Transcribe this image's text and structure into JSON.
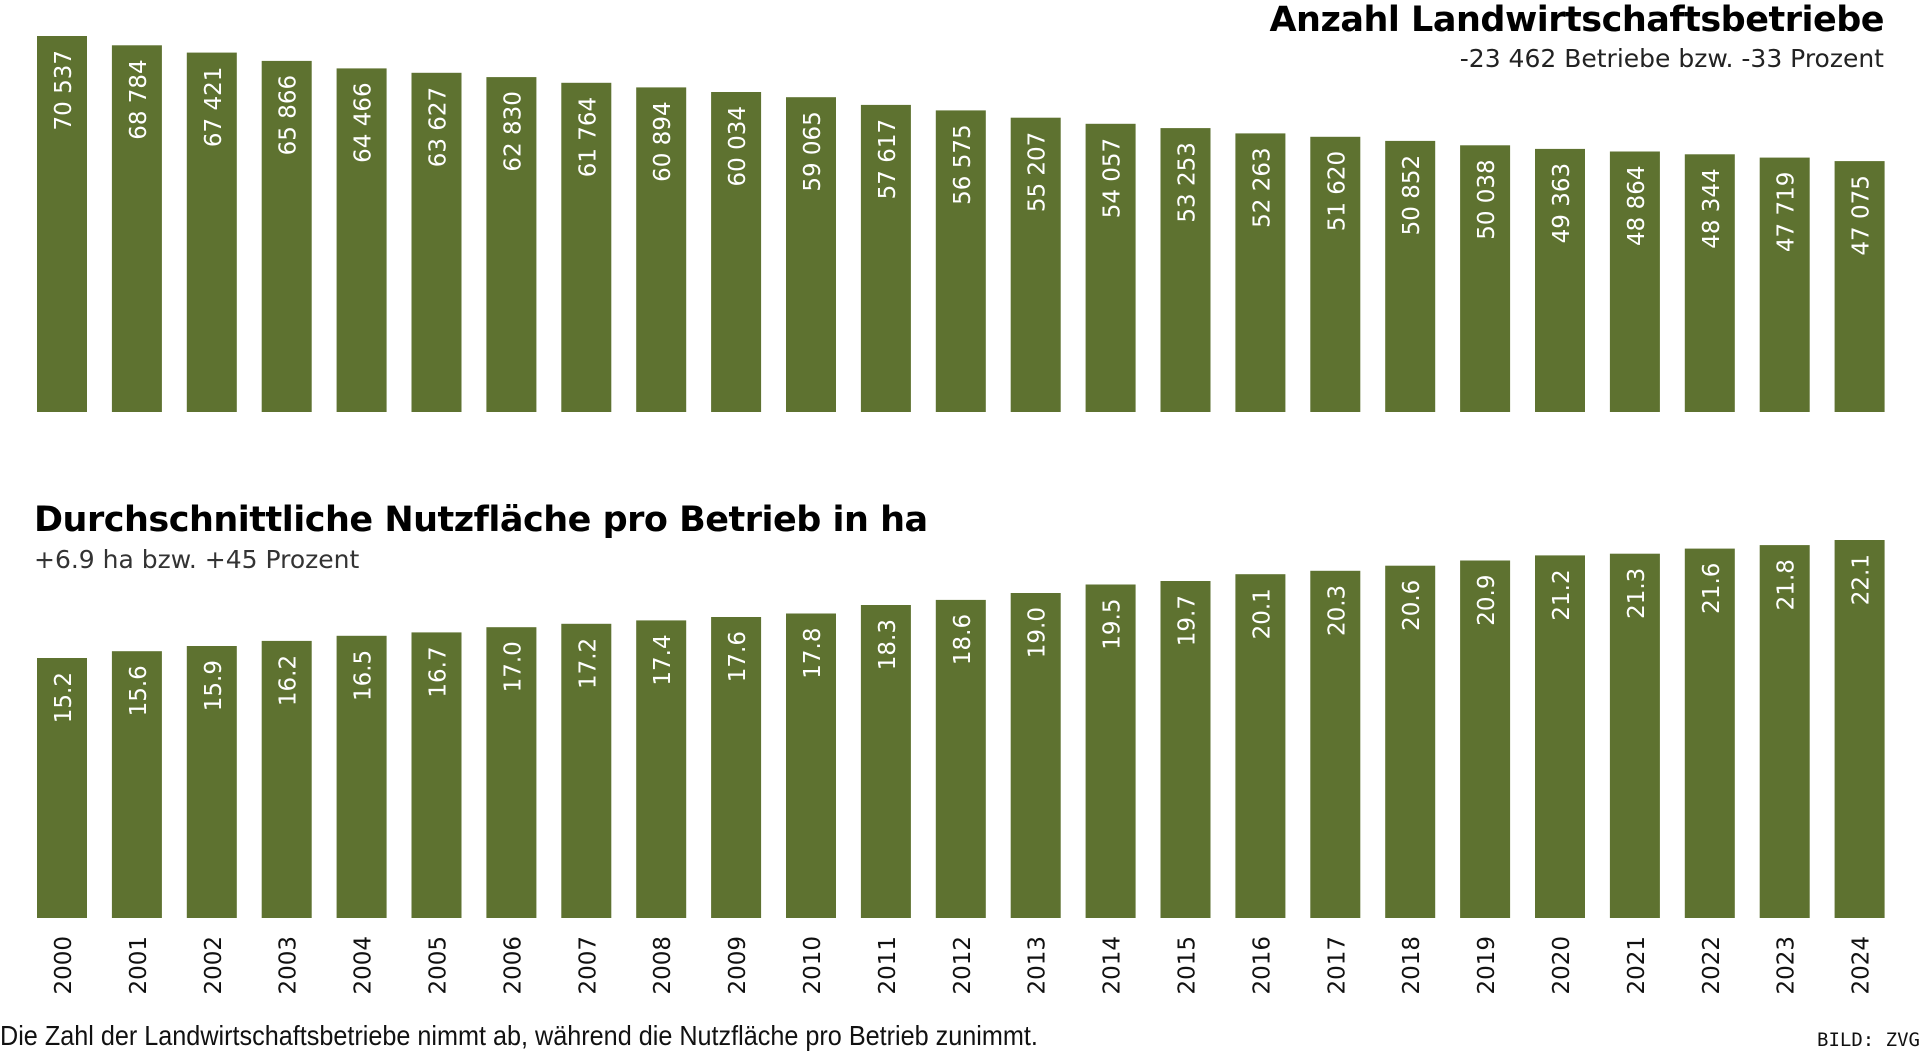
{
  "colors": {
    "bar": "#5e7230",
    "bar_label": "#ffffff",
    "text": "#000000"
  },
  "top": {
    "title": "Anzahl Landwirtschaftsbetriebe",
    "subtitle": "-23 462 Betriebe bzw. -33 Prozent"
  },
  "bottom": {
    "title": "Durchschnittliche Nutzfläche pro Betrieb in ha",
    "subtitle": "+6.9 ha bzw. +45 Prozent"
  },
  "footer": {
    "caption": "Die Zahl der Landwirtschaftsbetriebe nimmt ab, während die Nutzfläche pro Betrieb zunimmt.",
    "credit": "BILD: ZVG"
  },
  "chart_data": [
    {
      "type": "bar",
      "title": "Anzahl Landwirtschaftsbetriebe",
      "subtitle": "-23 462 Betriebe bzw. -33 Prozent",
      "categories": [
        "2000",
        "2001",
        "2002",
        "2003",
        "2004",
        "2005",
        "2006",
        "2007",
        "2008",
        "2009",
        "2010",
        "2011",
        "2012",
        "2013",
        "2014",
        "2015",
        "2016",
        "2017",
        "2018",
        "2019",
        "2020",
        "2021",
        "2022",
        "2023",
        "2024"
      ],
      "values": [
        70537,
        68784,
        67421,
        65866,
        64466,
        63627,
        62830,
        61764,
        60894,
        60034,
        59065,
        57617,
        56575,
        55207,
        54057,
        53253,
        52263,
        51620,
        50852,
        50038,
        49363,
        48864,
        48344,
        47719,
        47075
      ],
      "labels": [
        "70 537",
        "68 784",
        "67 421",
        "65 866",
        "64 466",
        "63 627",
        "62 830",
        "61 764",
        "60 894",
        "60 034",
        "59 065",
        "57 617",
        "56 575",
        "55 207",
        "54 057",
        "53 253",
        "52 263",
        "51 620",
        "50 852",
        "50 038",
        "49 363",
        "48 864",
        "48 344",
        "47 719",
        "47 075"
      ],
      "ylim": [
        0,
        70537
      ]
    },
    {
      "type": "bar",
      "title": "Durchschnittliche Nutzfläche pro Betrieb in ha",
      "subtitle": "+6.9 ha bzw. +45 Prozent",
      "categories": [
        "2000",
        "2001",
        "2002",
        "2003",
        "2004",
        "2005",
        "2006",
        "2007",
        "2008",
        "2009",
        "2010",
        "2011",
        "2012",
        "2013",
        "2014",
        "2015",
        "2016",
        "2017",
        "2018",
        "2019",
        "2020",
        "2021",
        "2022",
        "2023",
        "2024"
      ],
      "values": [
        15.2,
        15.6,
        15.9,
        16.2,
        16.5,
        16.7,
        17.0,
        17.2,
        17.4,
        17.6,
        17.8,
        18.3,
        18.6,
        19.0,
        19.5,
        19.7,
        20.1,
        20.3,
        20.6,
        20.9,
        21.2,
        21.3,
        21.6,
        21.8,
        22.1
      ],
      "labels": [
        "15.2",
        "15.6",
        "15.9",
        "16.2",
        "16.5",
        "16.7",
        "17.0",
        "17.2",
        "17.4",
        "17.6",
        "17.8",
        "18.3",
        "18.6",
        "19.0",
        "19.5",
        "19.7",
        "20.1",
        "20.3",
        "20.6",
        "20.9",
        "21.2",
        "21.3",
        "21.6",
        "21.8",
        "22.1"
      ],
      "ylim": [
        0,
        22.1
      ]
    }
  ]
}
